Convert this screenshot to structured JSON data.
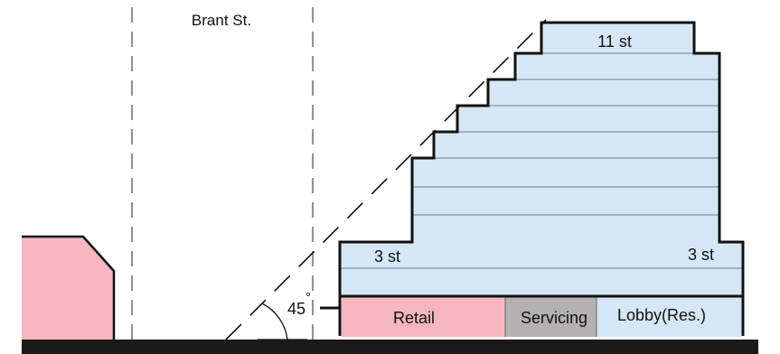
{
  "street": {
    "name": "Brant St."
  },
  "building": {
    "top_storey_label": "11 st",
    "podium_left_label": "3 st",
    "podium_right_label": "3 st"
  },
  "ground_floor": {
    "retail_label": "Retail",
    "servicing_label": "Servicing",
    "lobby_label": "Lobby(Res.)"
  },
  "angle": {
    "value_label": "45",
    "unit_symbol": "°"
  },
  "colors": {
    "tower_fill": "#d6e6f4",
    "retail_fill": "#f7b6bf",
    "servicing_fill": "#b3b1b1",
    "lobby_fill": "#d6e6f4",
    "neighbour_fill": "#f7b6bf",
    "ground_fill": "#1a1a1a",
    "line_color": "#111111"
  }
}
